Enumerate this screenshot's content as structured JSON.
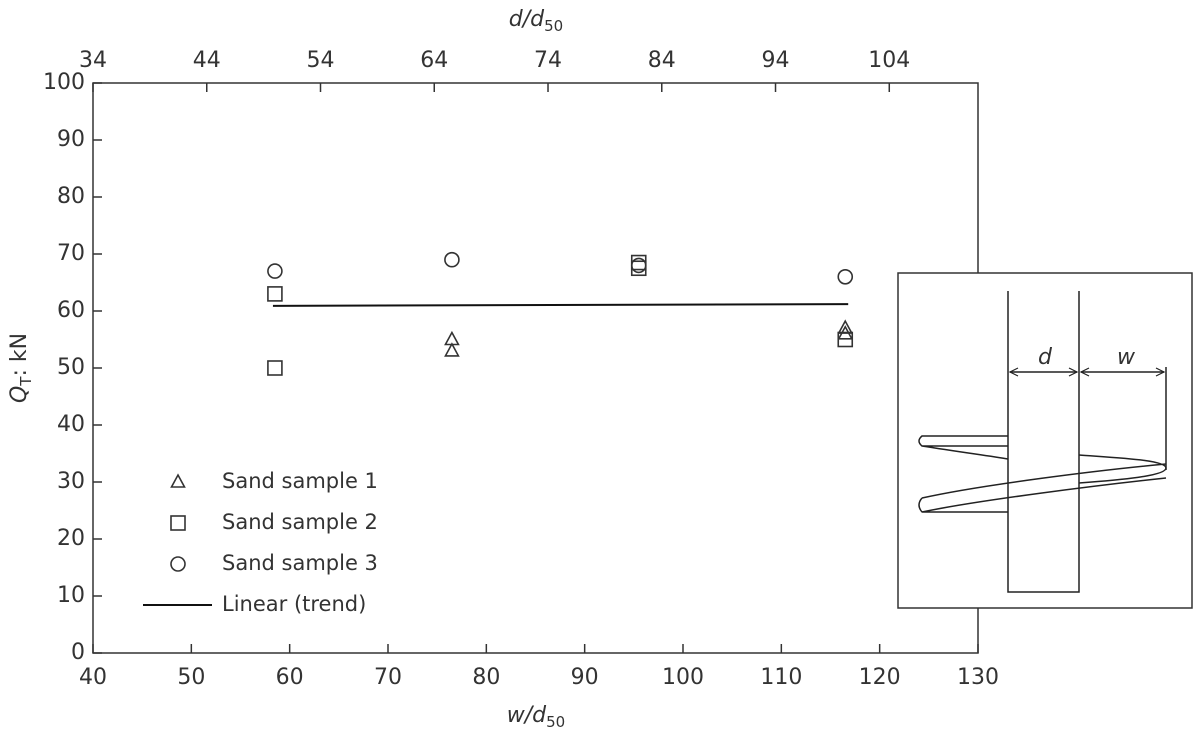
{
  "chart_data": {
    "type": "scatter",
    "xlabel": [
      "w/d",
      "50"
    ],
    "x2label": [
      "d/d",
      "50"
    ],
    "ylabel": [
      "Q",
      "T",
      ": kN"
    ],
    "xlim": [
      40,
      130
    ],
    "xticks": [
      40,
      50,
      60,
      70,
      80,
      90,
      100,
      110,
      120,
      130
    ],
    "x2lim": [
      34,
      111.8
    ],
    "x2ticks": [
      34,
      44,
      54,
      64,
      74,
      84,
      94,
      104
    ],
    "ylim": [
      0,
      100
    ],
    "yticks": [
      0,
      10,
      20,
      30,
      40,
      50,
      60,
      70,
      80,
      90,
      100
    ],
    "series": [
      {
        "name": "Sand sample 1",
        "marker": "triangle",
        "color": "#333333",
        "x": [
          76.5,
          76.5,
          116.5,
          116.5
        ],
        "values": [
          55,
          53,
          57,
          56
        ]
      },
      {
        "name": "Sand sample 2",
        "marker": "square",
        "color": "#333333",
        "x": [
          58.5,
          58.5,
          95.5,
          95.5,
          116.5
        ],
        "values": [
          63,
          50,
          68.5,
          67.5,
          55
        ]
      },
      {
        "name": "Sand sample 3",
        "marker": "circle",
        "color": "#333333",
        "x": [
          58.5,
          76.5,
          95.5,
          116.5
        ],
        "values": [
          67,
          69,
          68,
          66
        ]
      },
      {
        "name": "Linear (trend)",
        "marker": "line",
        "color": "#111111",
        "x": [
          58.3,
          116.8
        ],
        "values": [
          60.9,
          61.2
        ]
      }
    ],
    "annotations": [
      "d",
      "w"
    ]
  }
}
